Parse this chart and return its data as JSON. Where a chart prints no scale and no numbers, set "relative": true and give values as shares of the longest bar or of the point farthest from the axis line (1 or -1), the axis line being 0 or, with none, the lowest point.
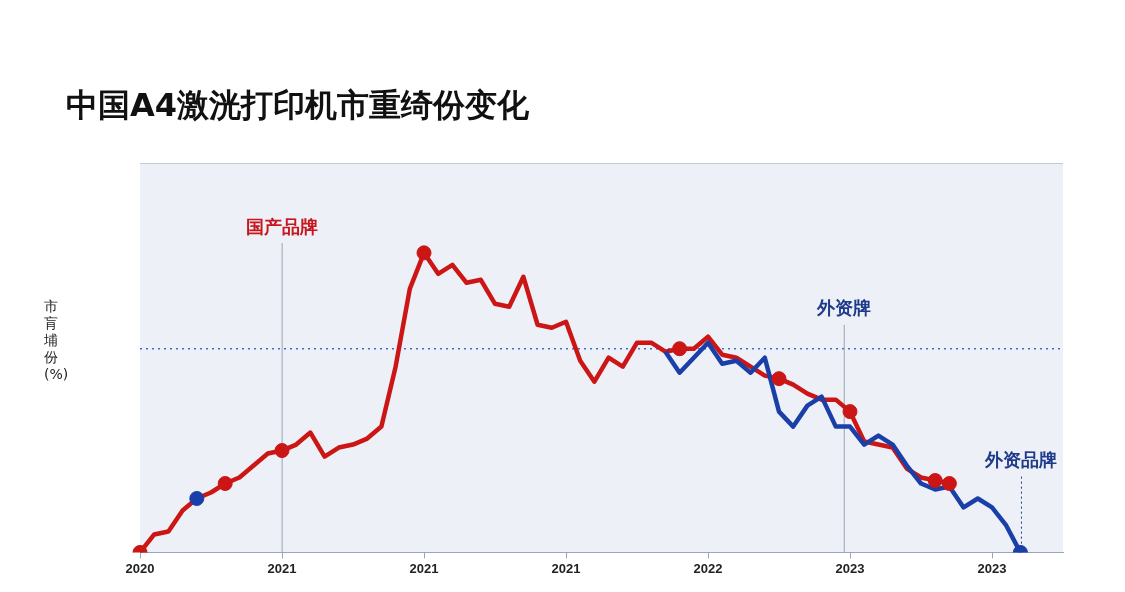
{
  "chart_data": {
    "type": "line",
    "title": "中国A4激洸打印机市重绮份变化",
    "ylabel": "市肓埔份(%)",
    "relative": true,
    "categories": [
      "2020",
      null,
      null,
      null,
      null,
      null,
      null,
      null,
      null,
      null,
      "2021",
      null,
      null,
      null,
      null,
      null,
      null,
      null,
      null,
      null,
      "2021",
      null,
      null,
      null,
      null,
      null,
      null,
      null,
      null,
      null,
      "2021",
      null,
      null,
      null,
      null,
      null,
      null,
      null,
      null,
      null,
      "2022",
      null,
      null,
      null,
      null,
      null,
      null,
      null,
      null,
      null,
      "2023",
      null,
      null,
      null,
      null,
      null,
      null,
      null,
      null,
      null,
      "2023",
      null,
      null,
      null,
      null,
      null
    ],
    "line_style": "solid",
    "ref_lines": [
      {
        "axis": "y",
        "value": 0.68,
        "color": "#3b6fd0",
        "line_style": "dotted"
      }
    ],
    "annotations": [
      "国产品牌",
      "外资牌",
      "外资品牌"
    ],
    "series": [
      {
        "type": "line",
        "color": "#1a3fa8",
        "values": [
          null,
          null,
          null,
          null,
          null,
          null,
          null,
          null,
          null,
          null,
          null,
          null,
          null,
          null,
          null,
          null,
          null,
          null,
          null,
          null,
          null,
          null,
          null,
          null,
          null,
          null,
          null,
          null,
          null,
          null,
          null,
          null,
          null,
          null,
          null,
          null,
          null,
          0.67,
          0.6,
          0.65,
          0.7,
          0.63,
          0.64,
          0.6,
          0.65,
          0.47,
          0.42,
          0.49,
          0.52,
          0.42,
          0.42,
          0.36,
          0.39,
          0.36,
          0.29,
          0.23,
          0.21,
          0.22,
          0.15,
          0.18,
          0.15,
          0.09,
          0,
          null,
          null,
          null
        ]
      },
      {
        "type": "line",
        "color": "#cc1616",
        "values": [
          0,
          0.06,
          0.07,
          0.14,
          0.18,
          0.2,
          0.23,
          0.25,
          0.29,
          0.33,
          0.34,
          0.36,
          0.4,
          0.32,
          0.35,
          0.36,
          0.38,
          0.42,
          0.62,
          0.88,
          1,
          0.93,
          0.96,
          0.9,
          0.91,
          0.83,
          0.82,
          0.92,
          0.76,
          0.75,
          0.77,
          0.64,
          0.57,
          0.65,
          0.62,
          0.7,
          0.7,
          0.67,
          0.68,
          0.68,
          0.72,
          0.66,
          0.65,
          0.62,
          0.59,
          0.58,
          0.56,
          0.53,
          0.51,
          0.51,
          0.47,
          0.37,
          0.36,
          0.35,
          0.28,
          0.25,
          0.24,
          0.23,
          null,
          null,
          null,
          null,
          null,
          null,
          null,
          null
        ]
      },
      {
        "type": "scatter",
        "color": "#cc1616",
        "values": [
          0,
          null,
          null,
          null,
          null,
          null,
          0.23,
          null,
          null,
          null,
          0.34,
          null,
          null,
          null,
          null,
          null,
          null,
          null,
          null,
          null,
          1,
          null,
          null,
          null,
          null,
          null,
          null,
          null,
          null,
          null,
          null,
          null,
          null,
          null,
          null,
          null,
          null,
          null,
          0.68,
          null,
          null,
          null,
          null,
          null,
          null,
          0.58,
          null,
          null,
          null,
          null,
          0.47,
          null,
          null,
          null,
          null,
          null,
          0.24,
          0.23,
          null,
          null,
          null,
          null,
          null,
          null,
          null,
          null
        ]
      },
      {
        "type": "scatter",
        "color": "#1a3fa8",
        "values": [
          null,
          null,
          null,
          null,
          0.18,
          null,
          null,
          null,
          null,
          null,
          null,
          null,
          null,
          null,
          null,
          null,
          null,
          null,
          null,
          null,
          null,
          null,
          null,
          null,
          null,
          null,
          null,
          null,
          null,
          null,
          null,
          null,
          null,
          null,
          null,
          null,
          null,
          null,
          null,
          null,
          null,
          null,
          null,
          null,
          null,
          null,
          null,
          null,
          null,
          null,
          null,
          null,
          null,
          null,
          null,
          null,
          null,
          null,
          null,
          null,
          null,
          null,
          0,
          null,
          null,
          null
        ]
      }
    ]
  }
}
